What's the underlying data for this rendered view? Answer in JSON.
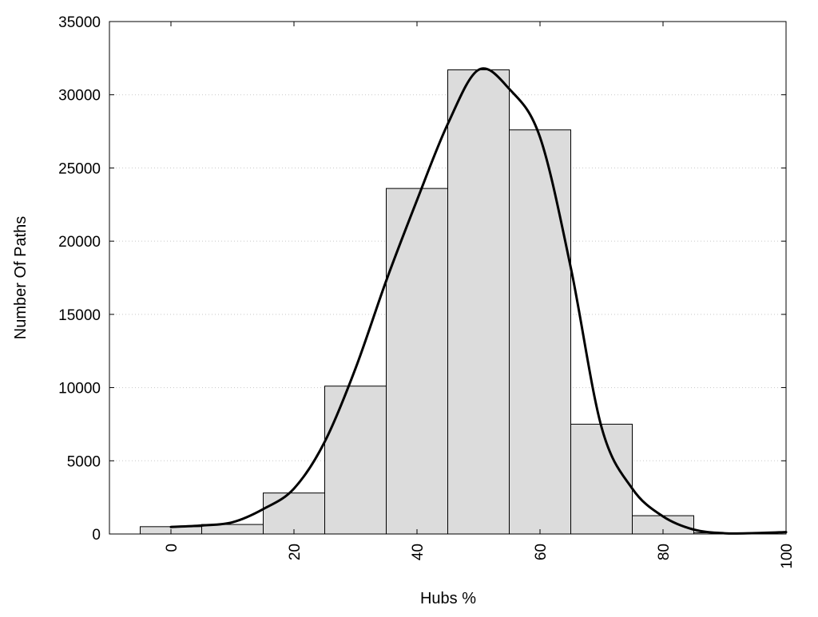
{
  "chart_data": {
    "type": "bar",
    "title": "",
    "xlabel": "Hubs %",
    "ylabel": "Number Of Paths",
    "xlim": [
      -10,
      100
    ],
    "ylim": [
      0,
      35000
    ],
    "grid": "horizontal dotted",
    "x_ticks": [
      "0",
      "20",
      "40",
      "60",
      "80",
      "100"
    ],
    "y_ticks": [
      "0",
      "5000",
      "10000",
      "15000",
      "20000",
      "25000",
      "30000",
      "35000"
    ],
    "bin_width": 10,
    "bins": [
      {
        "center": 0,
        "value": 500
      },
      {
        "center": 10,
        "value": 650
      },
      {
        "center": 20,
        "value": 2800
      },
      {
        "center": 30,
        "value": 10100
      },
      {
        "center": 40,
        "value": 23600
      },
      {
        "center": 50,
        "value": 31700
      },
      {
        "center": 60,
        "value": 27600
      },
      {
        "center": 70,
        "value": 7500
      },
      {
        "center": 80,
        "value": 1250
      },
      {
        "center": 90,
        "value": 80
      }
    ],
    "curve": {
      "x": [
        0,
        5,
        10,
        15,
        20,
        25,
        30,
        35,
        40,
        45,
        50,
        55,
        60,
        65,
        70,
        75,
        80,
        85,
        90,
        95,
        100
      ],
      "y": [
        480,
        580,
        800,
        1700,
        3100,
        6300,
        11300,
        17300,
        22800,
        28000,
        31700,
        30400,
        27100,
        18200,
        7300,
        3100,
        1200,
        300,
        50,
        60,
        130
      ]
    },
    "colors": {
      "bar_fill": "#dcdcdc",
      "bar_stroke": "#000000",
      "curve": "#000000"
    }
  }
}
